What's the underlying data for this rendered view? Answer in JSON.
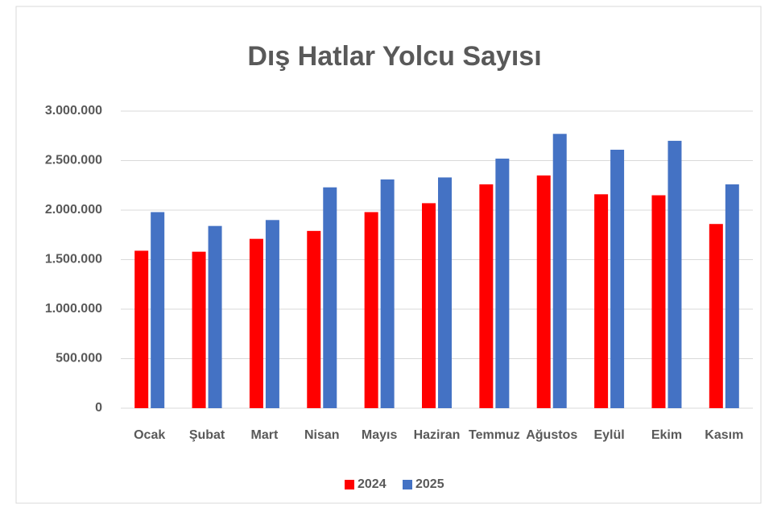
{
  "chart_data": {
    "type": "bar",
    "title": "Dış Hatlar Yolcu Sayısı",
    "categories": [
      "Ocak",
      "Şubat",
      "Mart",
      "Nisan",
      "Mayıs",
      "Haziran",
      "Temmuz",
      "Ağustos",
      "Eylül",
      "Ekim",
      "Kasım"
    ],
    "series": [
      {
        "name": "2024",
        "color": "#ff0000",
        "values": [
          1590000,
          1580000,
          1710000,
          1790000,
          1980000,
          2070000,
          2260000,
          2350000,
          2160000,
          2150000,
          1860000
        ]
      },
      {
        "name": "2025",
        "color": "#4472c4",
        "values": [
          1980000,
          1840000,
          1900000,
          2230000,
          2310000,
          2330000,
          2520000,
          2770000,
          2610000,
          2700000,
          2260000
        ]
      }
    ],
    "ylim": [
      0,
      3000000
    ],
    "yticks": [
      0,
      {
        "value": 500000,
        "label": "500.000"
      },
      {
        "value": 1000000,
        "label": "1.000.000"
      },
      {
        "value": 1500000,
        "label": "1.500.000"
      },
      {
        "value": 2000000,
        "label": "2.000.000"
      },
      {
        "value": 2500000,
        "label": "2.500.000"
      },
      {
        "value": 3000000,
        "label": "3.000.000"
      }
    ],
    "grid": true,
    "legend": "bottom"
  }
}
